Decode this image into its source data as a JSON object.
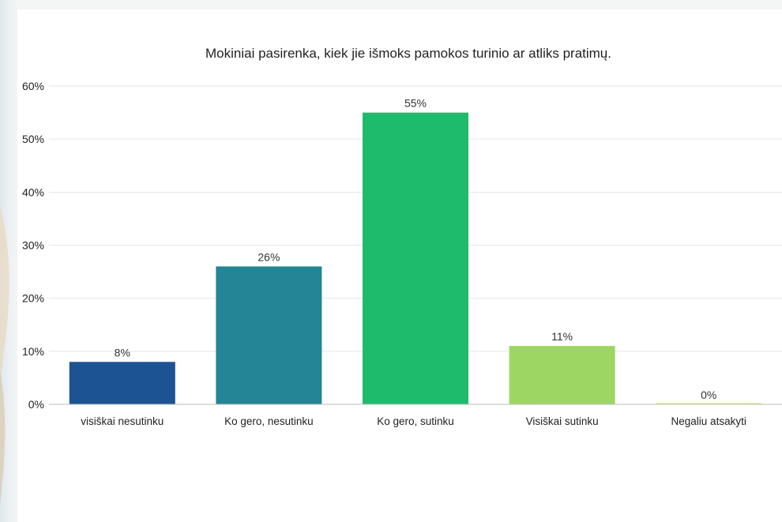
{
  "chart_data": {
    "type": "bar",
    "title": "Mokiniai pasirenka, kiek jie išmoks pamokos turinio ar atliks pratimų.",
    "categories": [
      "visiškai nesutinku",
      "Ko gero, nesutinku",
      "Ko gero, sutinku",
      "Visiškai sutinku",
      "Negaliu atsakyti"
    ],
    "values": [
      8,
      26,
      55,
      11,
      0
    ],
    "value_labels": [
      "8%",
      "26%",
      "55%",
      "11%",
      "0%"
    ],
    "colors": [
      "#1b5393",
      "#238596",
      "#1ebb6c",
      "#9dd662",
      "#d6e77a"
    ],
    "yticks": [
      "0%",
      "10%",
      "20%",
      "30%",
      "40%",
      "50%",
      "60%"
    ],
    "ylim": [
      0,
      60
    ],
    "grid": true,
    "legend": "none"
  }
}
